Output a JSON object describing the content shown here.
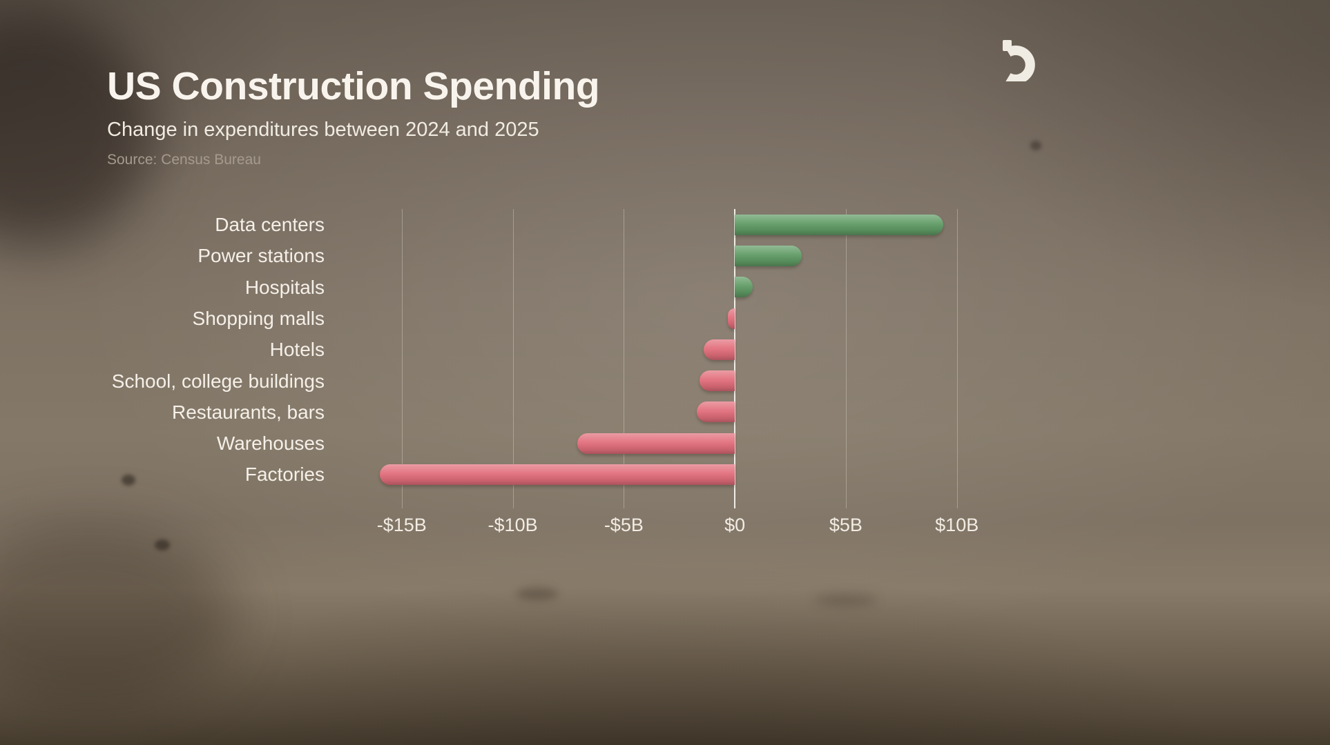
{
  "logo": {
    "name": "broadcaster-b-mark"
  },
  "chart_data": {
    "type": "bar",
    "orientation": "horizontal",
    "title": "US Construction Spending",
    "subtitle": "Change in expenditures between 2024 and 2025",
    "source": "Source: Census Bureau",
    "categories": [
      "Data centers",
      "Power stations",
      "Hospitals",
      "Shopping malls",
      "Hotels",
      "School, college buildings",
      "Restaurants, bars",
      "Warehouses",
      "Factories"
    ],
    "values": [
      9.4,
      3.0,
      0.8,
      -0.3,
      -1.4,
      -1.6,
      -1.7,
      -7.1,
      -16.0
    ],
    "unit": "USD billions",
    "xlim": [
      -16.3,
      12.0
    ],
    "ticks": [
      {
        "value": -15,
        "label": "-$15B"
      },
      {
        "value": -10,
        "label": "-$10B"
      },
      {
        "value": -5,
        "label": "-$5B"
      },
      {
        "value": 0,
        "label": "$0"
      },
      {
        "value": 5,
        "label": "$5B"
      },
      {
        "value": 10,
        "label": "$10B"
      }
    ],
    "positive_color": "#5f9a64",
    "negative_color": "#e16d7a",
    "grid": "vertical",
    "legend": "none"
  }
}
